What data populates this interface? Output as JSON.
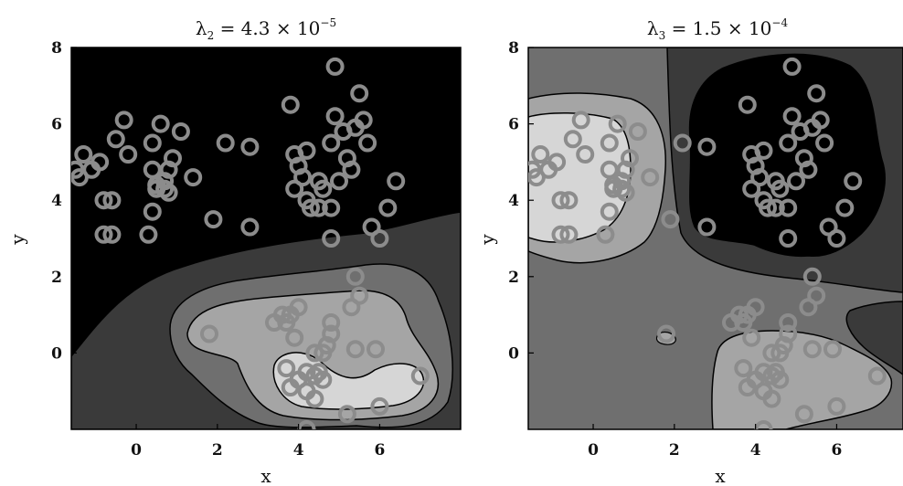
{
  "chart_data": [
    {
      "type": "contour",
      "title": {
        "lambda": "λ",
        "subscript": "2",
        "mantissa": "= 4.3 × 10",
        "exponent": "−5"
      },
      "xlabel": "x",
      "ylabel": "y",
      "xlim": [
        -1.6,
        8.0
      ],
      "ylim": [
        -2.0,
        8.0
      ],
      "xticks": [
        0,
        2,
        4,
        6
      ],
      "yticks": [
        0,
        2,
        4,
        6,
        8
      ],
      "grid": false,
      "levels_gray": [
        "#000000",
        "#3a3a3a",
        "#6f6f6f",
        "#a5a5a5",
        "#d6d6d6"
      ],
      "marker_color": "#8c8c8c",
      "points": [
        [
          4.9,
          7.5
        ],
        [
          5.5,
          6.8
        ],
        [
          3.8,
          6.5
        ],
        [
          5.6,
          6.1
        ],
        [
          4.9,
          6.2
        ],
        [
          5.4,
          5.9
        ],
        [
          5.1,
          5.8
        ],
        [
          4.8,
          5.5
        ],
        [
          5.7,
          5.5
        ],
        [
          4.2,
          5.3
        ],
        [
          3.9,
          5.2
        ],
        [
          5.2,
          5.1
        ],
        [
          4.0,
          4.9
        ],
        [
          5.3,
          4.8
        ],
        [
          4.5,
          4.5
        ],
        [
          4.1,
          4.6
        ],
        [
          3.9,
          4.3
        ],
        [
          4.6,
          4.3
        ],
        [
          5.0,
          4.5
        ],
        [
          6.4,
          4.5
        ],
        [
          4.2,
          4.0
        ],
        [
          4.5,
          3.8
        ],
        [
          4.3,
          3.8
        ],
        [
          6.2,
          3.8
        ],
        [
          4.8,
          3.8
        ],
        [
          5.8,
          3.3
        ],
        [
          4.8,
          3.0
        ],
        [
          6.0,
          3.0
        ],
        [
          -0.3,
          6.1
        ],
        [
          0.6,
          6.0
        ],
        [
          1.1,
          5.8
        ],
        [
          -0.5,
          5.6
        ],
        [
          0.4,
          5.5
        ],
        [
          2.2,
          5.5
        ],
        [
          2.8,
          5.4
        ],
        [
          -1.3,
          5.2
        ],
        [
          -0.2,
          5.2
        ],
        [
          0.9,
          5.1
        ],
        [
          -0.9,
          5.0
        ],
        [
          0.8,
          4.8
        ],
        [
          0.4,
          4.8
        ],
        [
          -1.1,
          4.8
        ],
        [
          -1.5,
          4.8
        ],
        [
          -1.4,
          4.6
        ],
        [
          1.4,
          4.6
        ],
        [
          0.7,
          4.5
        ],
        [
          0.5,
          4.4
        ],
        [
          0.7,
          4.3
        ],
        [
          0.8,
          4.2
        ],
        [
          0.5,
          4.3
        ],
        [
          -0.8,
          4.0
        ],
        [
          -0.6,
          4.0
        ],
        [
          0.4,
          3.7
        ],
        [
          1.9,
          3.5
        ],
        [
          2.8,
          3.3
        ],
        [
          -0.8,
          3.1
        ],
        [
          -0.6,
          3.1
        ],
        [
          0.3,
          3.1
        ],
        [
          5.4,
          2.0
        ],
        [
          5.5,
          1.5
        ],
        [
          5.3,
          1.2
        ],
        [
          4.0,
          1.2
        ],
        [
          3.6,
          1.0
        ],
        [
          3.8,
          1.0
        ],
        [
          3.4,
          0.8
        ],
        [
          3.7,
          0.8
        ],
        [
          4.8,
          0.8
        ],
        [
          4.8,
          0.5
        ],
        [
          1.8,
          0.5
        ],
        [
          3.9,
          0.4
        ],
        [
          4.7,
          0.2
        ],
        [
          5.4,
          0.1
        ],
        [
          5.9,
          0.1
        ],
        [
          4.6,
          0.0
        ],
        [
          4.4,
          0.0
        ],
        [
          3.7,
          -0.4
        ],
        [
          4.2,
          -0.5
        ],
        [
          4.5,
          -0.5
        ],
        [
          4.4,
          -0.6
        ],
        [
          7.0,
          -0.6
        ],
        [
          4.0,
          -0.7
        ],
        [
          4.6,
          -0.7
        ],
        [
          3.8,
          -0.9
        ],
        [
          4.2,
          -1.0
        ],
        [
          4.4,
          -1.2
        ],
        [
          6.0,
          -1.4
        ],
        [
          5.2,
          -1.6
        ],
        [
          4.2,
          -2.0
        ]
      ]
    },
    {
      "type": "contour",
      "title": {
        "lambda": "λ",
        "subscript": "3",
        "mantissa": "= 1.5 × 10",
        "exponent": "−4"
      },
      "xlabel": "x",
      "ylabel": "y",
      "xlim": [
        -1.6,
        8.0
      ],
      "ylim": [
        -2.0,
        8.0
      ],
      "xticks": [
        0,
        2,
        4,
        6
      ],
      "yticks": [
        0,
        2,
        4,
        6,
        8
      ],
      "grid": false,
      "levels_gray": [
        "#000000",
        "#3a3a3a",
        "#6f6f6f",
        "#a5a5a5",
        "#d6d6d6"
      ],
      "marker_color": "#8c8c8c",
      "points": "same as first panel"
    }
  ]
}
